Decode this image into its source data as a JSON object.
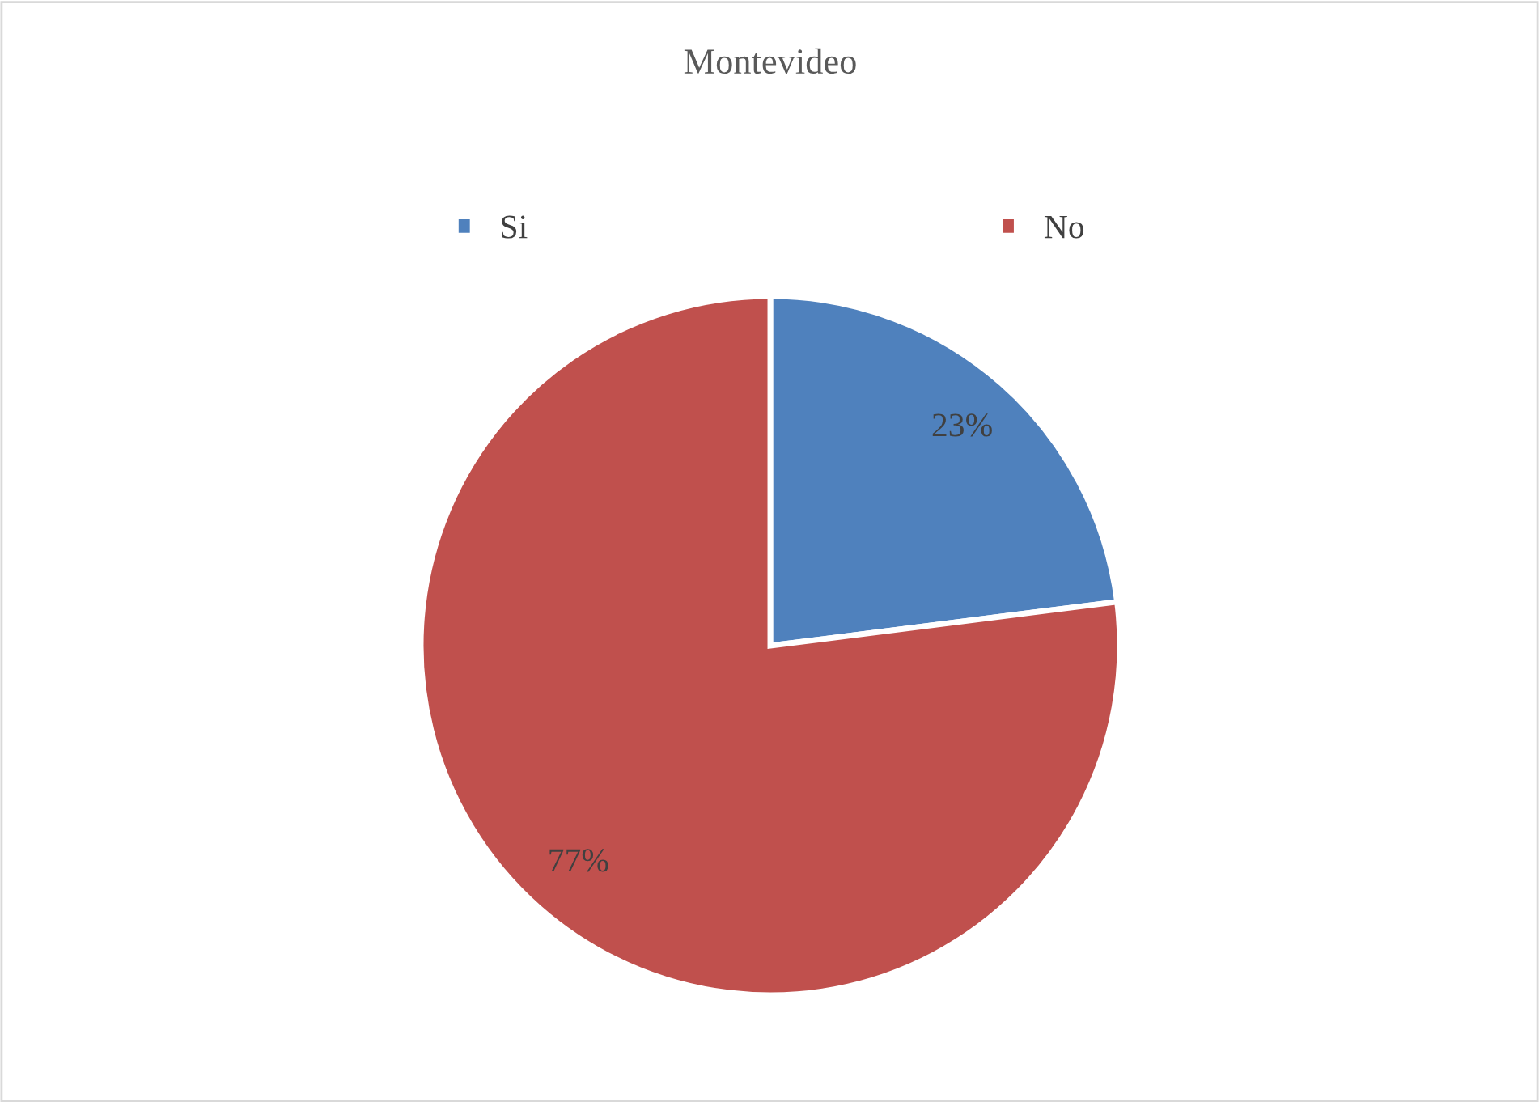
{
  "chart_data": {
    "type": "pie",
    "title": "Montevideo",
    "categories": [
      "Si",
      "No"
    ],
    "values": [
      23,
      77
    ],
    "colors": [
      "#4f81bd",
      "#c0504d"
    ],
    "value_labels": [
      "23%",
      "77%"
    ],
    "legend": "top"
  }
}
